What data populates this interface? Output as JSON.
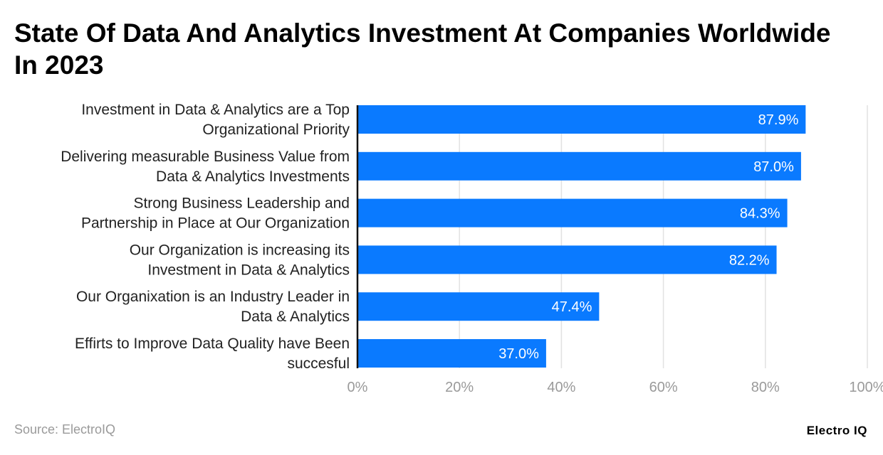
{
  "chart_data": {
    "type": "bar",
    "orientation": "horizontal",
    "title": "State Of Data And Analytics Investment At Companies Worldwide In 2023",
    "categories": [
      [
        "Investment in Data & Analytics are a Top",
        "Organizational Priority"
      ],
      [
        "Delivering measurable Business Value from",
        "Data & Analytics Investments"
      ],
      [
        "Strong Business Leadership and",
        "Partnership in Place at Our Organization"
      ],
      [
        "Our Organization is increasing its",
        "Investment in Data & Analytics"
      ],
      [
        "Our Organixation is an Industry Leader in",
        "Data & Analytics"
      ],
      [
        "Effirts to Improve Data Quality have Been",
        "succesful"
      ]
    ],
    "values": [
      87.9,
      87.0,
      84.3,
      82.2,
      47.4,
      37.0
    ],
    "data_labels": [
      "87.9%",
      "87.0%",
      "84.3%",
      "82.2%",
      "47.4%",
      "37.0%"
    ],
    "xlim": [
      0,
      100
    ],
    "x_ticks": [
      0,
      20,
      40,
      60,
      80,
      100
    ],
    "x_tick_labels": [
      "0%",
      "20%",
      "40%",
      "60%",
      "80%",
      "100%"
    ],
    "grid": true,
    "bar_color": "#0a7aff",
    "xlabel": "",
    "ylabel": ""
  },
  "source": "Source: ElectroIQ",
  "logo": "Electro IQ"
}
